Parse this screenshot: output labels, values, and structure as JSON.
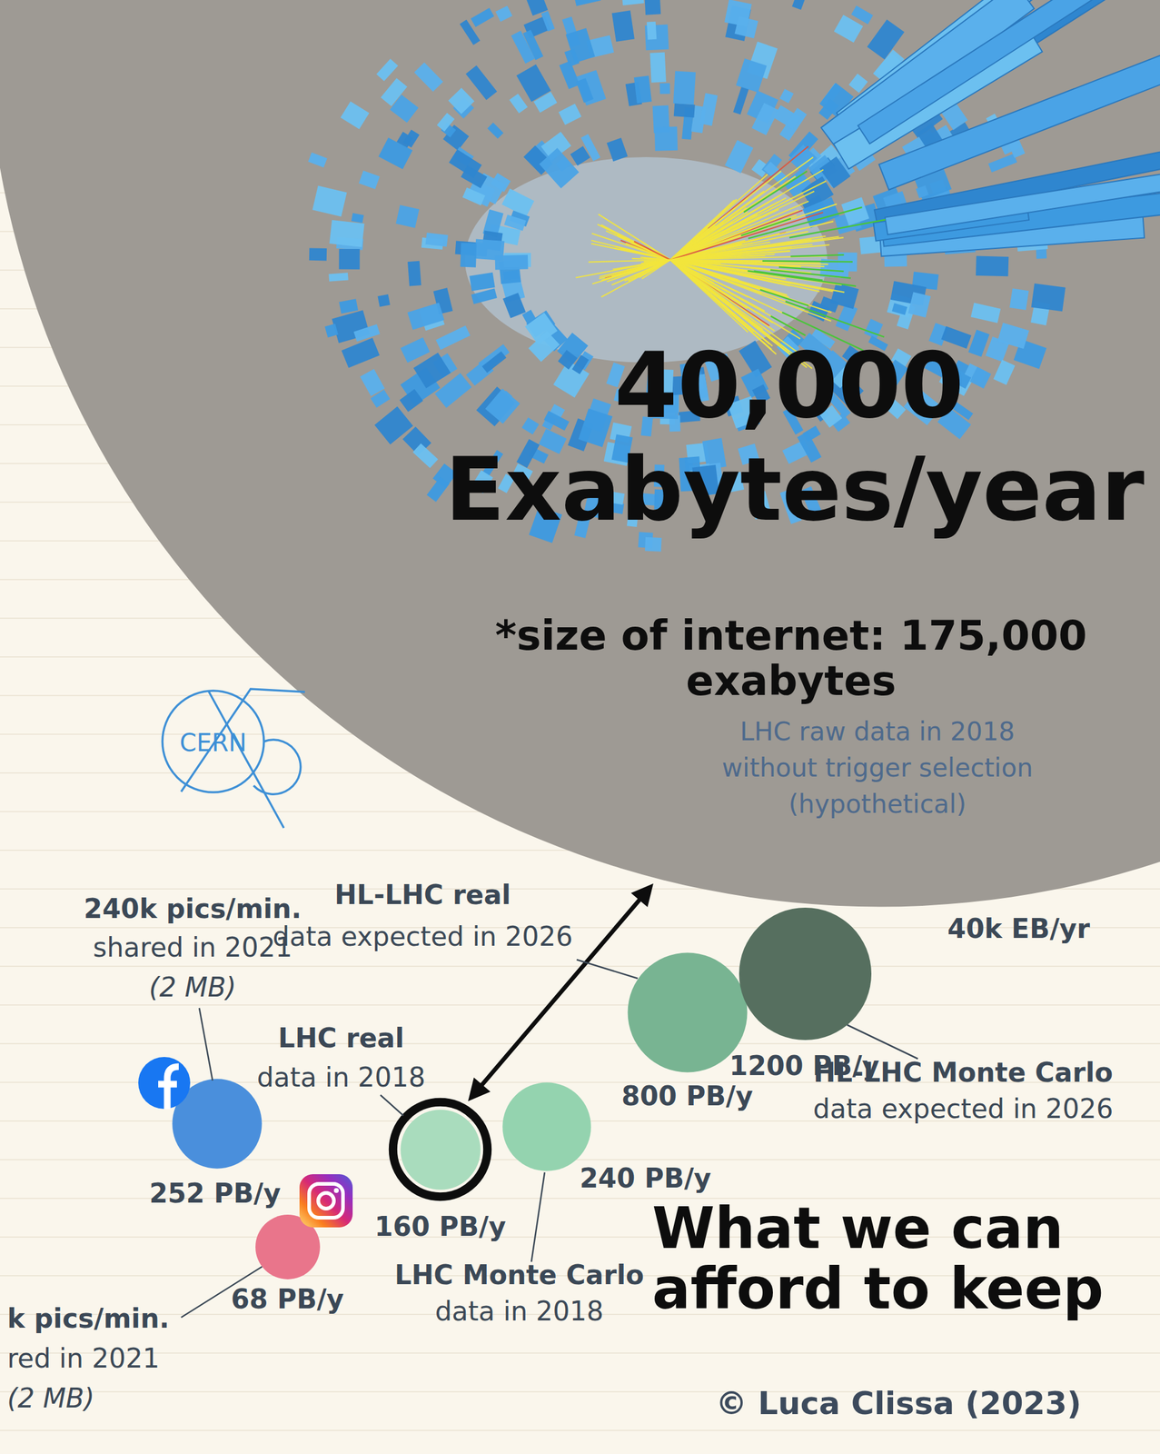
{
  "chart_data": {
    "type": "bubble",
    "headline": [
      "40,000",
      "Exabytes/year"
    ],
    "note": [
      "*size of internet: 175,000",
      "exabytes"
    ],
    "categories": [
      [
        "240k pics/min.",
        "shared in 2021",
        "(2 MB)"
      ],
      [
        "k pics/min.",
        "red in 2021",
        "(2 MB)"
      ],
      [
        "LHC real",
        "data in 2018"
      ],
      [
        "LHC Monte Carlo",
        "data in 2018"
      ],
      [
        "HL-LHC real",
        "data expected in 2026"
      ],
      [
        "HL-LHC Monte Carlo",
        "data expected in 2026"
      ],
      [
        "LHC raw data in 2018",
        "without trigger selection",
        "(hypothetical)"
      ]
    ],
    "values": [
      252,
      68,
      160,
      240,
      800,
      1200,
      40000000
    ],
    "value_labels": [
      "252 PB/y",
      "68 PB/y",
      "160 PB/y",
      "240 PB/y",
      "800 PB/y",
      "1200 PB/y",
      "40k EB/yr"
    ],
    "colors": [
      "#4a8fdc",
      "#e9758b",
      "#a9dcbd",
      "#94d3af",
      "#78b492",
      "#566f5f",
      "#9e9a94"
    ],
    "data_labels": true,
    "annotation": [
      "What we can",
      "afford to keep"
    ],
    "logo": "CERN",
    "credit": "© Luca Clissa (2023)"
  }
}
